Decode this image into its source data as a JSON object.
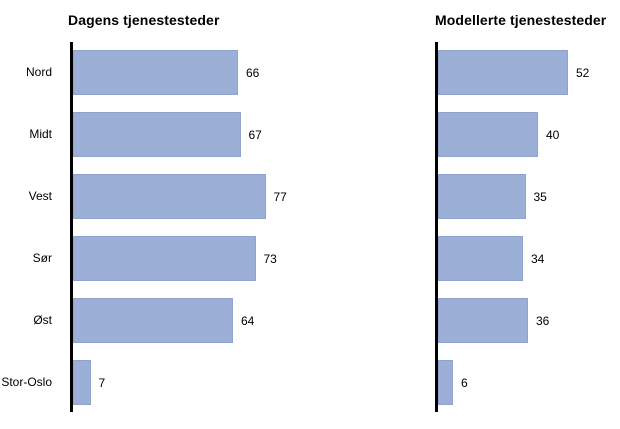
{
  "figure": {
    "background_color": "#ffffff",
    "text_color": "#000000",
    "axis_color": "#000000",
    "bar_color": "#9cafd6",
    "bar_border_color": "#8fa3cb"
  },
  "chart_data": [
    {
      "type": "bar",
      "orientation": "horizontal",
      "title": "Dagens tjenestesteder",
      "categories": [
        "Nord",
        "Midt",
        "Vest",
        "Sør",
        "Øst",
        "Stor-Oslo"
      ],
      "values": [
        66,
        67,
        77,
        73,
        64,
        7
      ],
      "xlim": [
        0,
        100
      ],
      "grid": false,
      "legend": "none",
      "data_labels": true,
      "show_category_labels": true
    },
    {
      "type": "bar",
      "orientation": "horizontal",
      "title": "Modellerte tjenestesteder",
      "categories": [
        "Nord",
        "Midt",
        "Vest",
        "Sør",
        "Øst",
        "Stor-Oslo"
      ],
      "values": [
        52,
        40,
        35,
        34,
        36,
        6
      ],
      "xlim": [
        0,
        100
      ],
      "grid": false,
      "legend": "none",
      "data_labels": true,
      "show_category_labels": false
    }
  ]
}
